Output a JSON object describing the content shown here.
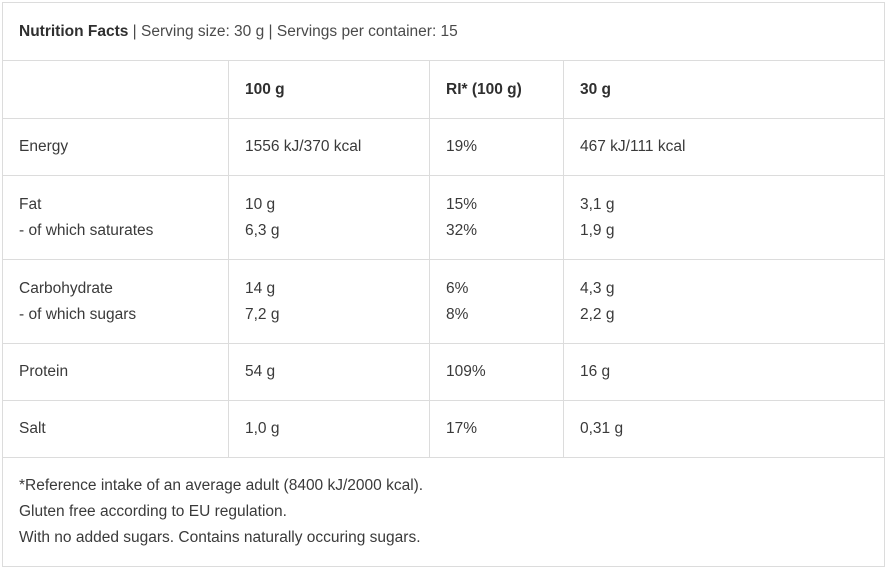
{
  "title": {
    "label": "Nutrition Facts",
    "details": " | Serving size: 30 g | Servings per container: 15"
  },
  "columns": [
    "100 g",
    "RI* (100 g)",
    "30 g"
  ],
  "rows": [
    {
      "label": [
        "Energy"
      ],
      "per100g": [
        "1556 kJ/370 kcal"
      ],
      "ri": [
        "19%"
      ],
      "perServing": [
        "467 kJ/111 kcal"
      ]
    },
    {
      "label": [
        "Fat",
        "- of which saturates"
      ],
      "per100g": [
        "10 g",
        "6,3 g"
      ],
      "ri": [
        "15%",
        "32%"
      ],
      "perServing": [
        "3,1 g",
        "1,9 g"
      ]
    },
    {
      "label": [
        "Carbohydrate",
        "- of which sugars"
      ],
      "per100g": [
        "14 g",
        "7,2 g"
      ],
      "ri": [
        "6%",
        "8%"
      ],
      "perServing": [
        "4,3 g",
        "2,2 g"
      ]
    },
    {
      "label": [
        "Protein"
      ],
      "per100g": [
        "54 g"
      ],
      "ri": [
        "109%"
      ],
      "perServing": [
        "16 g"
      ]
    },
    {
      "label": [
        "Salt"
      ],
      "per100g": [
        "1,0 g"
      ],
      "ri": [
        "17%"
      ],
      "perServing": [
        "0,31 g"
      ]
    }
  ],
  "footnotes": [
    "*Reference intake of an average adult (8400 kJ/2000 kcal).",
    "Gluten free according to EU regulation.",
    "With no added sugars. Contains naturally occuring sugars."
  ]
}
